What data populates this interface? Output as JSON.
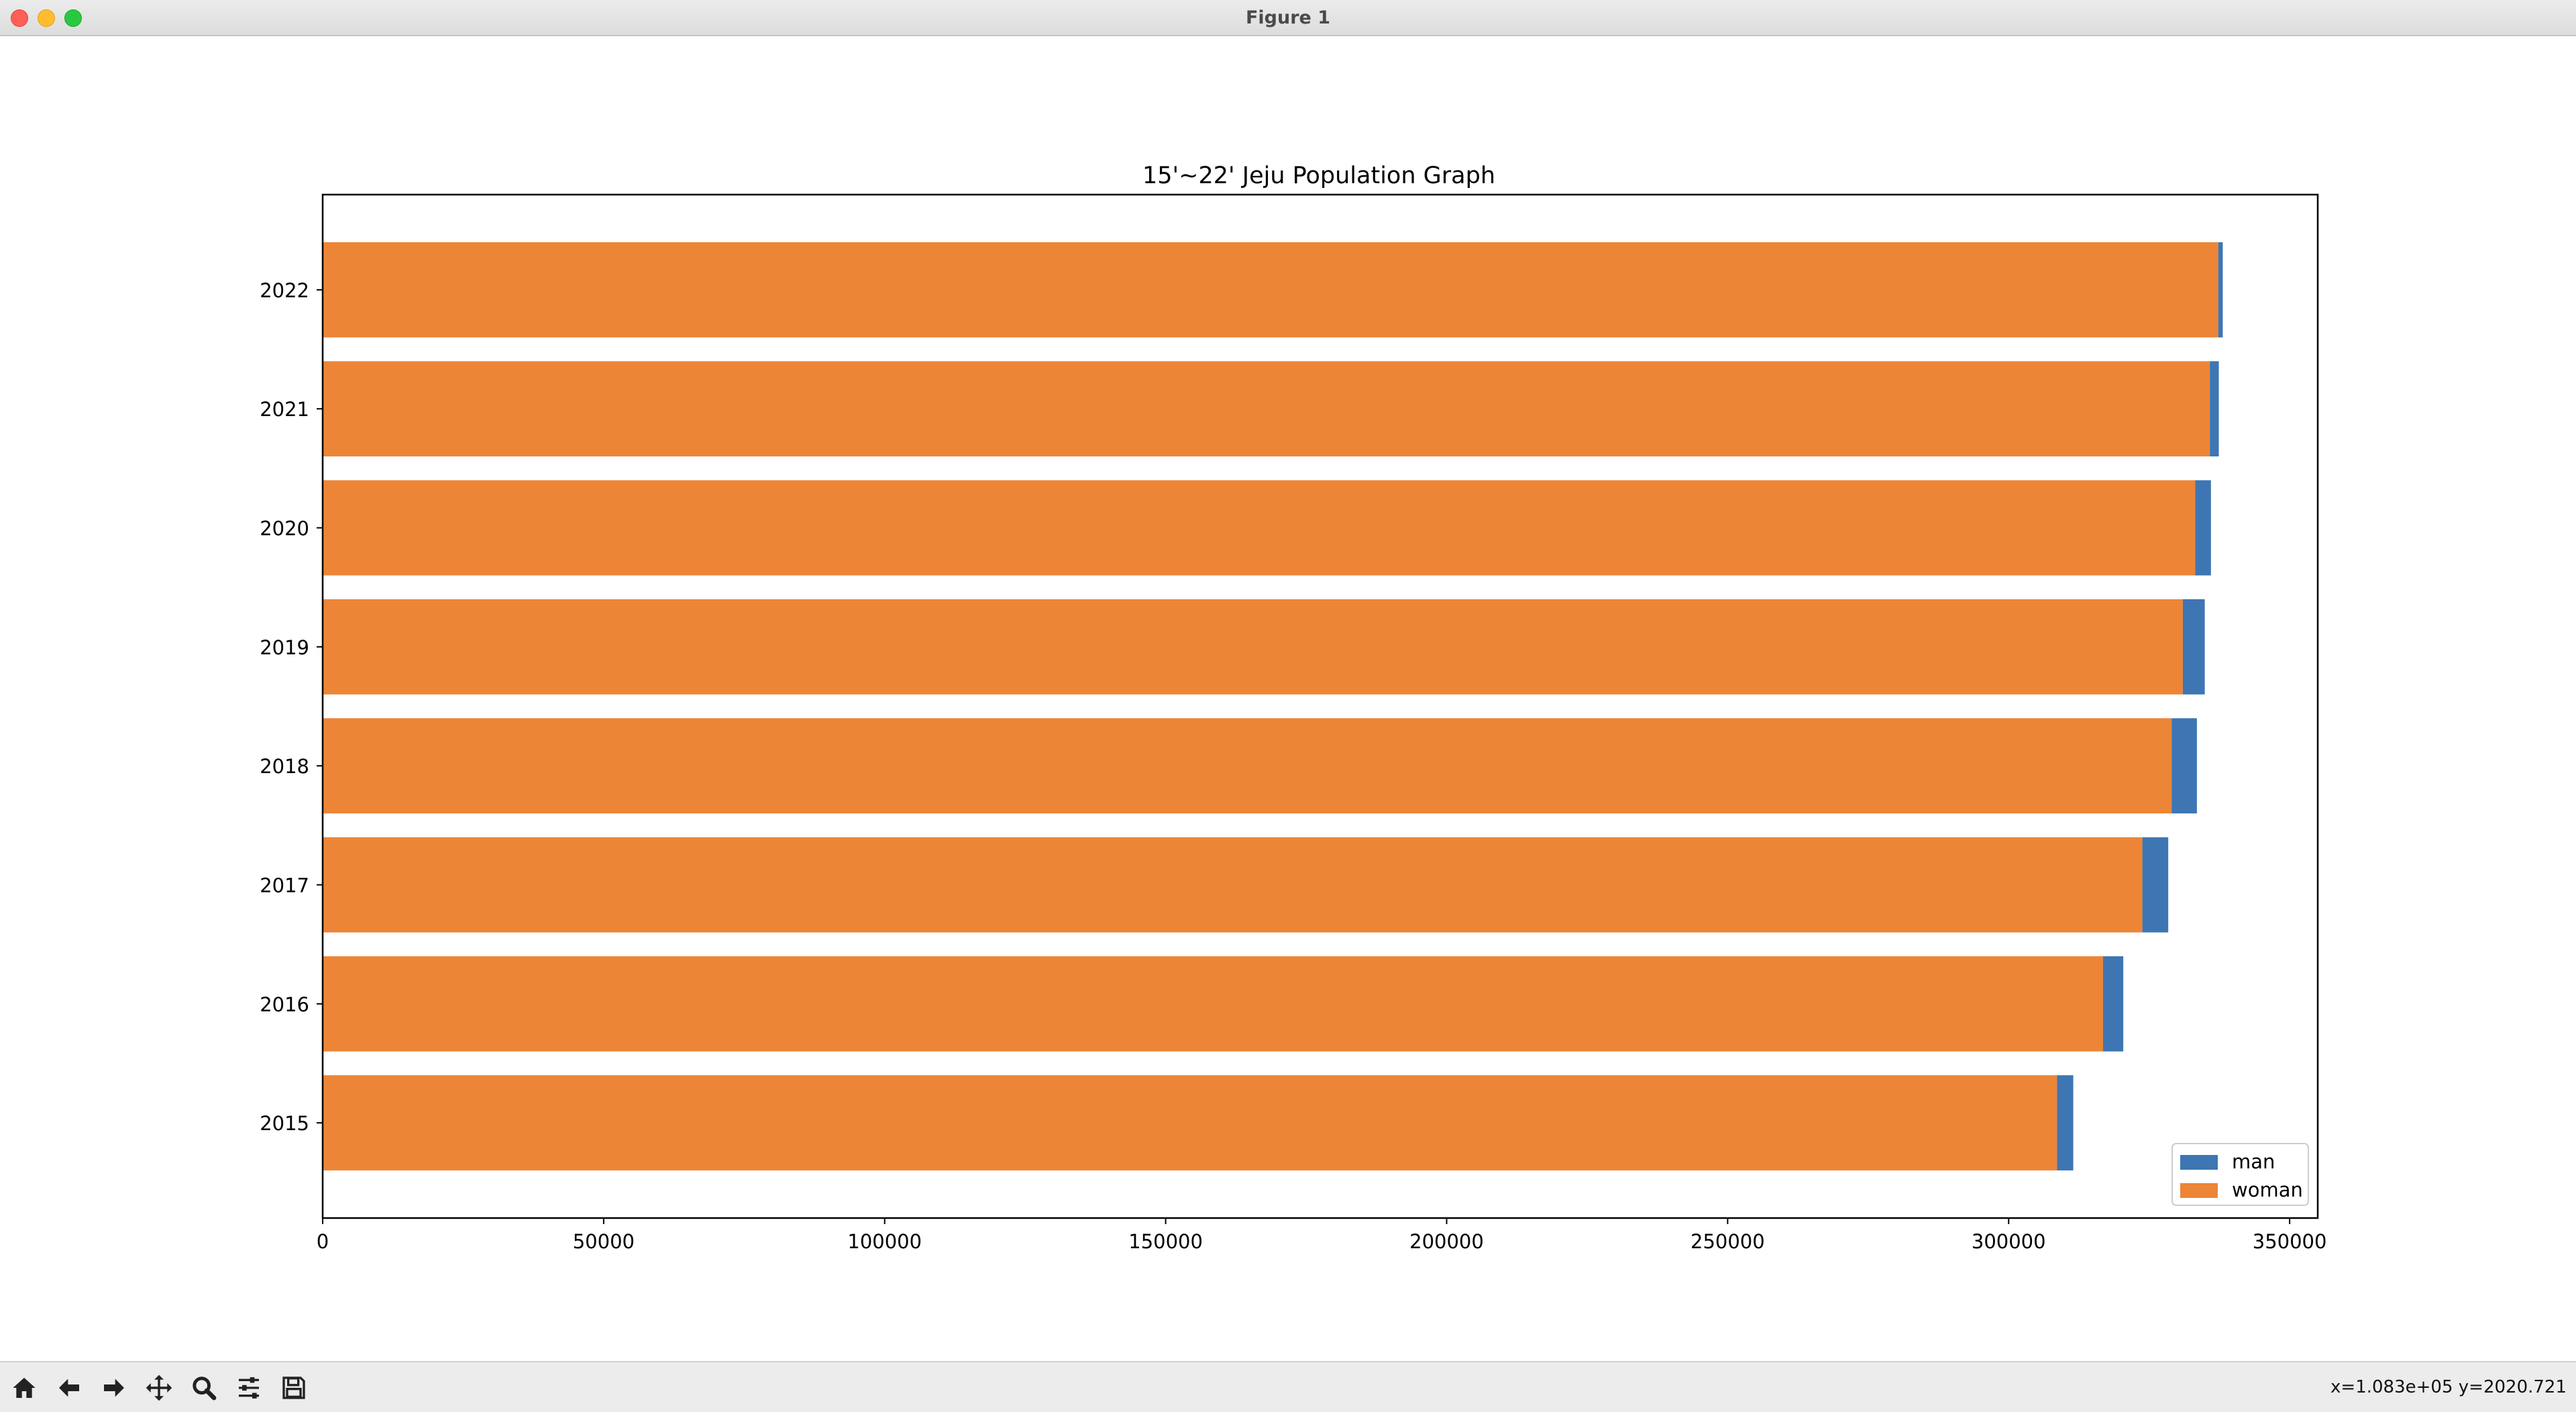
{
  "window": {
    "title": "Figure 1"
  },
  "chart_data": {
    "type": "bar",
    "orientation": "horizontal",
    "stacked": true,
    "title": "15'~22' Jeju Population Graph",
    "xlabel": "",
    "ylabel": "",
    "categories": [
      "2015",
      "2016",
      "2017",
      "2018",
      "2019",
      "2020",
      "2021",
      "2022"
    ],
    "series": [
      {
        "name": "woman",
        "color": "#ed8537",
        "values": [
          308600,
          316800,
          323800,
          329000,
          331000,
          333200,
          335800,
          337300
        ]
      },
      {
        "name": "man",
        "color": "#3d76b3",
        "values": [
          2900,
          3600,
          4600,
          4500,
          3900,
          2800,
          1600,
          800
        ]
      }
    ],
    "xlim": [
      0,
      355000
    ],
    "xticks": [
      0,
      50000,
      100000,
      150000,
      200000,
      250000,
      300000,
      350000
    ],
    "legend": {
      "position": "bottom-right",
      "entries": [
        "man",
        "woman"
      ]
    },
    "grid": false
  },
  "toolbar": {
    "buttons": [
      {
        "name": "home-button",
        "icon": "home-icon"
      },
      {
        "name": "back-button",
        "icon": "arrow-left-icon"
      },
      {
        "name": "forward-button",
        "icon": "arrow-right-icon"
      },
      {
        "name": "pan-button",
        "icon": "move-icon"
      },
      {
        "name": "zoom-button",
        "icon": "magnifier-icon"
      },
      {
        "name": "configure-subplots-button",
        "icon": "sliders-icon"
      },
      {
        "name": "save-button",
        "icon": "floppy-disk-icon"
      }
    ],
    "coordinates": "x=1.083e+05 y=2020.721"
  }
}
